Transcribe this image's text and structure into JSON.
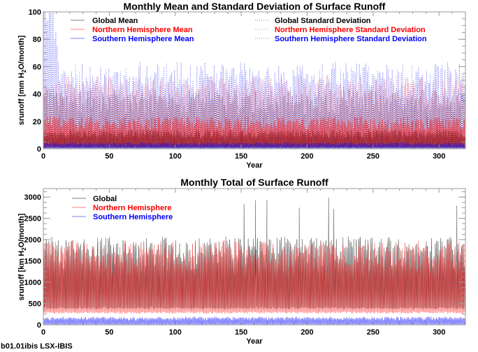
{
  "footer": "b01.01ibis LSX-IBIS",
  "colors": {
    "global": "#000000",
    "north": "#ff0000",
    "south": "#0000ff",
    "axis": "#999999"
  },
  "chart_data": [
    {
      "type": "line",
      "title": "Monthly Mean and Standard Deviation of Surface Runoff",
      "xlabel": "Year",
      "ylabel": "srunoff [mm H2O/month]",
      "ylabel_parts": [
        "srunoff [mm H",
        "2",
        "O/month]"
      ],
      "xlim": [
        0,
        320
      ],
      "ylim": [
        0,
        100
      ],
      "xticks": [
        0,
        50,
        100,
        150,
        200,
        250,
        300
      ],
      "yticks": [
        0,
        20,
        40,
        60,
        80,
        100
      ],
      "grid": false,
      "legend_placement": "top",
      "series": [
        {
          "name": "Global Mean",
          "color": "#000000",
          "style": "solid",
          "typical_range": [
            0,
            15
          ]
        },
        {
          "name": "Northern Hemisphere Mean",
          "color": "#ff0000",
          "style": "solid",
          "typical_range": [
            0,
            25
          ]
        },
        {
          "name": "Southern Hemisphere Mean",
          "color": "#0000ff",
          "style": "solid",
          "typical_range": [
            0,
            5
          ]
        },
        {
          "name": "Global Standard Deviation",
          "color": "#000000",
          "style": "dotted",
          "typical_range": [
            0,
            45
          ]
        },
        {
          "name": "Northern Hemisphere Standard Deviation",
          "color": "#ff0000",
          "style": "dotted",
          "typical_range": [
            0,
            55
          ]
        },
        {
          "name": "Southern Hemisphere Standard Deviation",
          "color": "#0000ff",
          "style": "dotted",
          "typical_range": [
            0,
            65
          ],
          "early_peak": 100
        }
      ]
    },
    {
      "type": "line",
      "title": "Monthly Total of Surface Runoff",
      "xlabel": "Year",
      "ylabel": "srunoff [km H2O/month]",
      "ylabel_parts": [
        "srunoff [km H",
        "2",
        "O/month]"
      ],
      "xlim": [
        0,
        320
      ],
      "ylim": [
        0,
        3200
      ],
      "xticks": [
        0,
        50,
        100,
        150,
        200,
        250,
        300
      ],
      "yticks": [
        0,
        500,
        1000,
        1500,
        2000,
        2500,
        3000
      ],
      "grid": false,
      "legend_placement": "top-left",
      "series": [
        {
          "name": "Global",
          "color": "#000000",
          "style": "solid",
          "typical_range": [
            300,
            2200
          ],
          "max": 3000
        },
        {
          "name": "Northern Hemisphere",
          "color": "#ff0000",
          "style": "solid",
          "typical_range": [
            200,
            2100
          ]
        },
        {
          "name": "Southern Hemisphere",
          "color": "#0000ff",
          "style": "solid",
          "typical_range": [
            0,
            200
          ]
        }
      ]
    }
  ]
}
